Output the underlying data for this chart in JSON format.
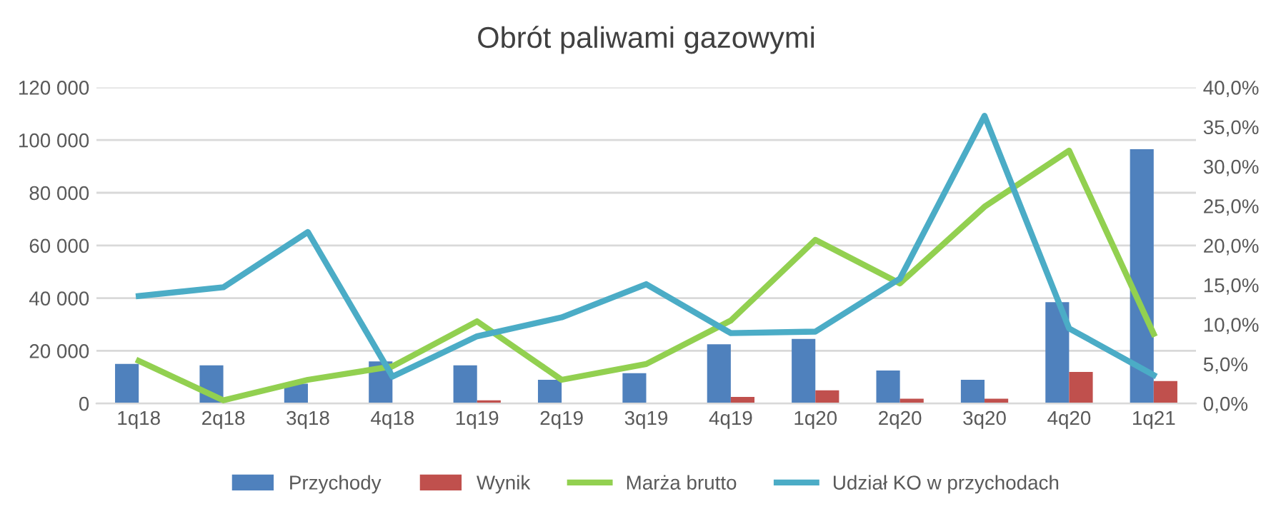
{
  "chart_data": {
    "type": "bar",
    "title": "Obrót paliwami gazowymi",
    "categories": [
      "1q18",
      "2q18",
      "3q18",
      "4q18",
      "1q19",
      "2q19",
      "3q19",
      "4q19",
      "1q20",
      "2q20",
      "3q20",
      "4q20",
      "1q21"
    ],
    "series": [
      {
        "name": "Przychody",
        "color": "#4f81bd",
        "values": [
          15000,
          14500,
          7500,
          16000,
          14500,
          9000,
          11500,
          22500,
          24500,
          12500,
          9000,
          38500,
          96500
        ]
      },
      {
        "name": "Wynik",
        "color": "#c0504d",
        "values": [
          null,
          0,
          0,
          null,
          1200,
          0,
          0,
          2500,
          5000,
          1800,
          1800,
          12000,
          8500
        ]
      },
      {
        "name": "Marża brutto",
        "type": "line",
        "axis": "y2",
        "color": "#92d050",
        "values": [
          5.4,
          0.4,
          3.0,
          4.7,
          10.4,
          3.0,
          5.0,
          10.5,
          20.7,
          15.2,
          24.9,
          32.0,
          8.8
        ]
      },
      {
        "name": "Udział KO w przychodach",
        "type": "line",
        "axis": "y2",
        "color": "#4bacc6",
        "values": [
          13.6,
          14.7,
          21.7,
          3.4,
          8.5,
          10.9,
          15.1,
          8.9,
          9.1,
          15.8,
          36.4,
          9.5,
          3.6
        ]
      }
    ],
    "ylim": [
      0,
      120000
    ],
    "yticks": [
      {
        "value": 0,
        "label": "0"
      },
      {
        "value": 20000,
        "label": "20 000"
      },
      {
        "value": 40000,
        "label": "40 000"
      },
      {
        "value": 60000,
        "label": "60 000"
      },
      {
        "value": 80000,
        "label": "80 000"
      },
      {
        "value": 100000,
        "label": "100 000"
      },
      {
        "value": 120000,
        "label": "120 000"
      }
    ],
    "y2lim": [
      0,
      40
    ],
    "y2ticks": [
      {
        "value": 0,
        "label": "0,0%"
      },
      {
        "value": 5,
        "label": "5,0%"
      },
      {
        "value": 10,
        "label": "10,0%"
      },
      {
        "value": 15,
        "label": "15,0%"
      },
      {
        "value": 20,
        "label": "20,0%"
      },
      {
        "value": 25,
        "label": "25,0%"
      },
      {
        "value": 30,
        "label": "30,0%"
      },
      {
        "value": 35,
        "label": "35,0%"
      },
      {
        "value": 40,
        "label": "40,0%"
      }
    ],
    "grid": "y",
    "legend": "bottom"
  }
}
